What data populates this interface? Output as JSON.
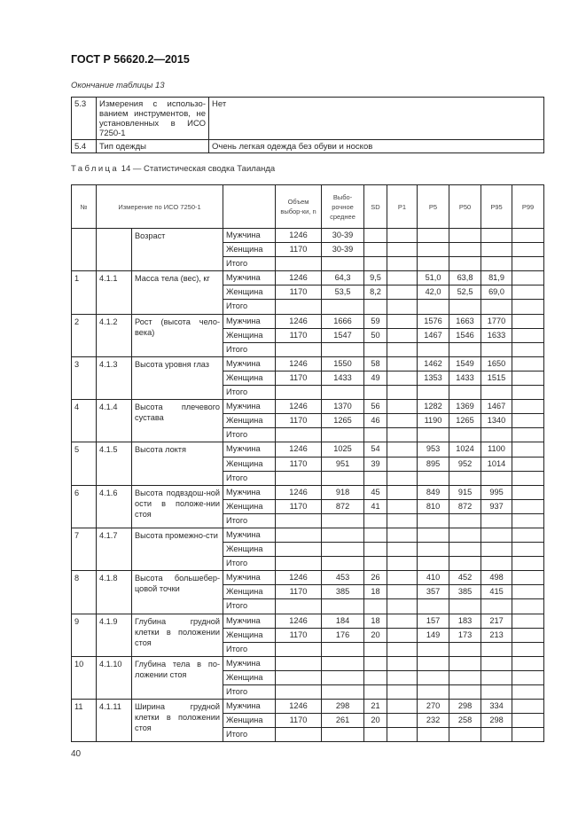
{
  "header": {
    "doc_title": "ГОСТ Р 56620.2—2015"
  },
  "table13": {
    "caption": "Окончание таблицы 13",
    "rows": [
      {
        "no": "5.3",
        "item": "Измерения с использо-ванием инструментов, не установленных в ИСО 7250-1",
        "value": "Нет"
      },
      {
        "no": "5.4",
        "item": "Тип одежды",
        "value": "Очень легкая одежда без обуви и носков"
      }
    ]
  },
  "table14": {
    "caption_prefix": "Таблица",
    "caption_rest": " 14 — Статистическая сводка Таиланда",
    "headers": {
      "no": "№",
      "measure": "Измерение по ИСО 7250-1",
      "sex": "",
      "n": "Объем выбор-ки, n",
      "mean": "Выбо-рочное среднее",
      "sd": "SD",
      "p1": "P1",
      "p5": "P5",
      "p50": "P50",
      "p95": "P95",
      "p99": "P99"
    },
    "groups": [
      {
        "no": "",
        "code": "",
        "name": "Возраст",
        "rows": [
          {
            "sex": "Мужчина",
            "n": "1246",
            "mean": "30-39",
            "sd": "",
            "p1": "",
            "p5": "",
            "p50": "",
            "p95": "",
            "p99": ""
          },
          {
            "sex": "Женщина",
            "n": "1170",
            "mean": "30-39",
            "sd": "",
            "p1": "",
            "p5": "",
            "p50": "",
            "p95": "",
            "p99": ""
          },
          {
            "sex": "Итого",
            "n": "",
            "mean": "",
            "sd": "",
            "p1": "",
            "p5": "",
            "p50": "",
            "p95": "",
            "p99": ""
          }
        ]
      },
      {
        "no": "1",
        "code": "4.1.1",
        "name": "Масса тела (вес), кг",
        "rows": [
          {
            "sex": "Мужчина",
            "n": "1246",
            "mean": "64,3",
            "sd": "9,5",
            "p1": "",
            "p5": "51,0",
            "p50": "63,8",
            "p95": "81,9",
            "p99": ""
          },
          {
            "sex": "Женщина",
            "n": "1170",
            "mean": "53,5",
            "sd": "8,2",
            "p1": "",
            "p5": "42,0",
            "p50": "52,5",
            "p95": "69,0",
            "p99": ""
          },
          {
            "sex": "Итого",
            "n": "",
            "mean": "",
            "sd": "",
            "p1": "",
            "p5": "",
            "p50": "",
            "p95": "",
            "p99": ""
          }
        ]
      },
      {
        "no": "2",
        "code": "4.1.2",
        "name": "Рост (высота чело-века)",
        "rows": [
          {
            "sex": "Мужчина",
            "n": "1246",
            "mean": "1666",
            "sd": "59",
            "p1": "",
            "p5": "1576",
            "p50": "1663",
            "p95": "1770",
            "p99": ""
          },
          {
            "sex": "Женщина",
            "n": "1170",
            "mean": "1547",
            "sd": "50",
            "p1": "",
            "p5": "1467",
            "p50": "1546",
            "p95": "1633",
            "p99": ""
          },
          {
            "sex": "Итого",
            "n": "",
            "mean": "",
            "sd": "",
            "p1": "",
            "p5": "",
            "p50": "",
            "p95": "",
            "p99": ""
          }
        ]
      },
      {
        "no": "3",
        "code": "4.1.3",
        "name": "Высота уровня глаз",
        "rows": [
          {
            "sex": "Мужчина",
            "n": "1246",
            "mean": "1550",
            "sd": "58",
            "p1": "",
            "p5": "1462",
            "p50": "1549",
            "p95": "1650",
            "p99": ""
          },
          {
            "sex": "Женщина",
            "n": "1170",
            "mean": "1433",
            "sd": "49",
            "p1": "",
            "p5": "1353",
            "p50": "1433",
            "p95": "1515",
            "p99": ""
          },
          {
            "sex": "Итого",
            "n": "",
            "mean": "",
            "sd": "",
            "p1": "",
            "p5": "",
            "p50": "",
            "p95": "",
            "p99": ""
          }
        ]
      },
      {
        "no": "4",
        "code": "4.1.4",
        "name": "Высота плечевого сустава",
        "rows": [
          {
            "sex": "Мужчина",
            "n": "1246",
            "mean": "1370",
            "sd": "56",
            "p1": "",
            "p5": "1282",
            "p50": "1369",
            "p95": "1467",
            "p99": ""
          },
          {
            "sex": "Женщина",
            "n": "1170",
            "mean": "1265",
            "sd": "46",
            "p1": "",
            "p5": "1190",
            "p50": "1265",
            "p95": "1340",
            "p99": ""
          },
          {
            "sex": "Итого",
            "n": "",
            "mean": "",
            "sd": "",
            "p1": "",
            "p5": "",
            "p50": "",
            "p95": "",
            "p99": ""
          }
        ]
      },
      {
        "no": "5",
        "code": "4.1.5",
        "name": "Высота локтя",
        "rows": [
          {
            "sex": "Мужчина",
            "n": "1246",
            "mean": "1025",
            "sd": "54",
            "p1": "",
            "p5": "953",
            "p50": "1024",
            "p95": "1100",
            "p99": ""
          },
          {
            "sex": "Женщина",
            "n": "1170",
            "mean": "951",
            "sd": "39",
            "p1": "",
            "p5": "895",
            "p50": "952",
            "p95": "1014",
            "p99": ""
          },
          {
            "sex": "Итого",
            "n": "",
            "mean": "",
            "sd": "",
            "p1": "",
            "p5": "",
            "p50": "",
            "p95": "",
            "p99": ""
          }
        ]
      },
      {
        "no": "6",
        "code": "4.1.6",
        "name": "Высота подвздош-ной ости в положе-нии стоя",
        "rows": [
          {
            "sex": "Мужчина",
            "n": "1246",
            "mean": "918",
            "sd": "45",
            "p1": "",
            "p5": "849",
            "p50": "915",
            "p95": "995",
            "p99": ""
          },
          {
            "sex": "Женщина",
            "n": "1170",
            "mean": "872",
            "sd": "41",
            "p1": "",
            "p5": "810",
            "p50": "872",
            "p95": "937",
            "p99": ""
          },
          {
            "sex": "Итого",
            "n": "",
            "mean": "",
            "sd": "",
            "p1": "",
            "p5": "",
            "p50": "",
            "p95": "",
            "p99": ""
          }
        ]
      },
      {
        "no": "7",
        "code": "4.1.7",
        "name": "Высота промежно-сти",
        "rows": [
          {
            "sex": "Мужчина",
            "n": "",
            "mean": "",
            "sd": "",
            "p1": "",
            "p5": "",
            "p50": "",
            "p95": "",
            "p99": ""
          },
          {
            "sex": "Женщина",
            "n": "",
            "mean": "",
            "sd": "",
            "p1": "",
            "p5": "",
            "p50": "",
            "p95": "",
            "p99": ""
          },
          {
            "sex": "Итого",
            "n": "",
            "mean": "",
            "sd": "",
            "p1": "",
            "p5": "",
            "p50": "",
            "p95": "",
            "p99": ""
          }
        ]
      },
      {
        "no": "8",
        "code": "4.1.8",
        "name": "Высота большебер-цовой точки",
        "rows": [
          {
            "sex": "Мужчина",
            "n": "1246",
            "mean": "453",
            "sd": "26",
            "p1": "",
            "p5": "410",
            "p50": "452",
            "p95": "498",
            "p99": ""
          },
          {
            "sex": "Женщина",
            "n": "1170",
            "mean": "385",
            "sd": "18",
            "p1": "",
            "p5": "357",
            "p50": "385",
            "p95": "415",
            "p99": ""
          },
          {
            "sex": "Итого",
            "n": "",
            "mean": "",
            "sd": "",
            "p1": "",
            "p5": "",
            "p50": "",
            "p95": "",
            "p99": ""
          }
        ]
      },
      {
        "no": "9",
        "code": "4.1.9",
        "name": "Глубина грудной клетки в положении стоя",
        "rows": [
          {
            "sex": "Мужчина",
            "n": "1246",
            "mean": "184",
            "sd": "18",
            "p1": "",
            "p5": "157",
            "p50": "183",
            "p95": "217",
            "p99": ""
          },
          {
            "sex": "Женщина",
            "n": "1170",
            "mean": "176",
            "sd": "20",
            "p1": "",
            "p5": "149",
            "p50": "173",
            "p95": "213",
            "p99": ""
          },
          {
            "sex": "Итого",
            "n": "",
            "mean": "",
            "sd": "",
            "p1": "",
            "p5": "",
            "p50": "",
            "p95": "",
            "p99": ""
          }
        ]
      },
      {
        "no": "10",
        "code": "4.1.10",
        "name": "Глубина тела в по-ложении стоя",
        "rows": [
          {
            "sex": "Мужчина",
            "n": "",
            "mean": "",
            "sd": "",
            "p1": "",
            "p5": "",
            "p50": "",
            "p95": "",
            "p99": ""
          },
          {
            "sex": "Женщина",
            "n": "",
            "mean": "",
            "sd": "",
            "p1": "",
            "p5": "",
            "p50": "",
            "p95": "",
            "p99": ""
          },
          {
            "sex": "Итого",
            "n": "",
            "mean": "",
            "sd": "",
            "p1": "",
            "p5": "",
            "p50": "",
            "p95": "",
            "p99": ""
          }
        ]
      },
      {
        "no": "11",
        "code": "4.1.11",
        "name": "Ширина грудной клетки в положении стоя",
        "rows": [
          {
            "sex": "Мужчина",
            "n": "1246",
            "mean": "298",
            "sd": "21",
            "p1": "",
            "p5": "270",
            "p50": "298",
            "p95": "334",
            "p99": ""
          },
          {
            "sex": "Женщина",
            "n": "1170",
            "mean": "261",
            "sd": "20",
            "p1": "",
            "p5": "232",
            "p50": "258",
            "p95": "298",
            "p99": ""
          },
          {
            "sex": "Итого",
            "n": "",
            "mean": "",
            "sd": "",
            "p1": "",
            "p5": "",
            "p50": "",
            "p95": "",
            "p99": ""
          }
        ]
      }
    ]
  },
  "footer": {
    "page_number": "40"
  }
}
